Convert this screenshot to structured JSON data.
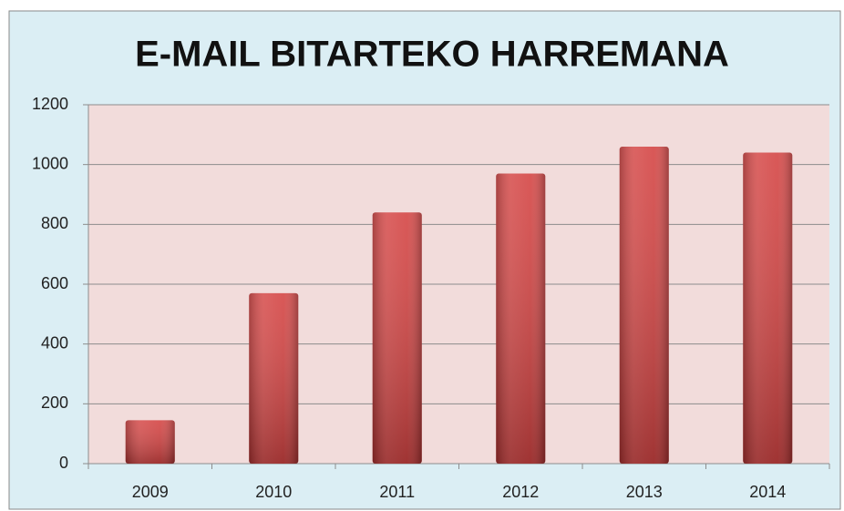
{
  "chart_data": {
    "type": "bar",
    "title": "E-MAIL BITARTEKO HARREMANA",
    "categories": [
      "2009",
      "2010",
      "2011",
      "2012",
      "2013",
      "2014"
    ],
    "values": [
      145,
      570,
      840,
      970,
      1060,
      1040
    ],
    "color": "#d23b3a",
    "ylim": [
      0,
      1200
    ],
    "yticks": [
      0,
      200,
      400,
      600,
      800,
      1000,
      1200
    ],
    "grid": true
  }
}
